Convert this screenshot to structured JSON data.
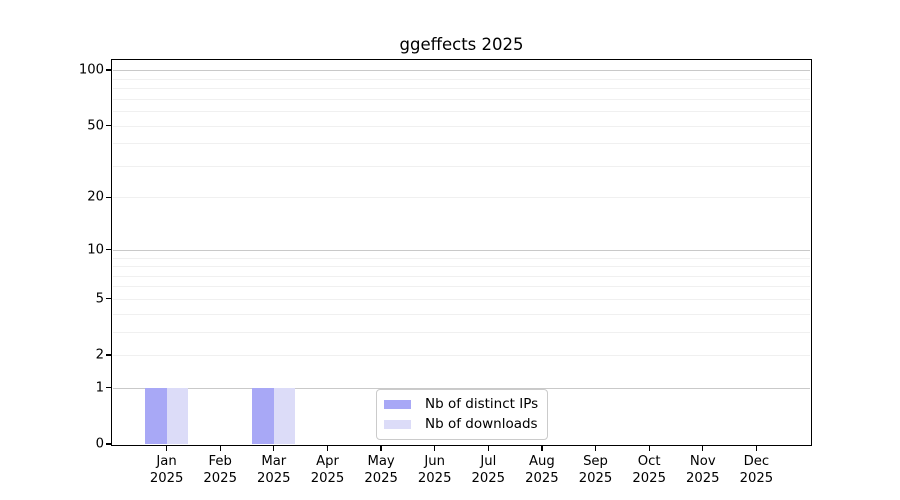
{
  "chart_data": {
    "type": "bar",
    "title": "ggeffects 2025",
    "categories": [
      "Jan",
      "Feb",
      "Mar",
      "Apr",
      "May",
      "Jun",
      "Jul",
      "Aug",
      "Sep",
      "Oct",
      "Nov",
      "Dec"
    ],
    "year_label": "2025",
    "series": [
      {
        "name": "Nb of distinct IPs",
        "color": "#a8a8f6",
        "values": [
          1,
          0,
          1,
          0,
          0,
          0,
          0,
          0,
          0,
          0,
          0,
          0
        ]
      },
      {
        "name": "Nb of downloads",
        "color": "#dcdcf8",
        "values": [
          1,
          0,
          1,
          0,
          0,
          0,
          0,
          0,
          0,
          0,
          0,
          0
        ]
      }
    ],
    "y_axis": {
      "scale": "log1p",
      "ticks": [
        0,
        1,
        2,
        5,
        10,
        20,
        50,
        100
      ],
      "limit_max": 112,
      "major_gridlines": [
        1,
        10,
        100
      ],
      "minor_gridlines": [
        2,
        3,
        4,
        5,
        6,
        7,
        8,
        9,
        20,
        30,
        40,
        50,
        60,
        70,
        80,
        90
      ]
    },
    "x_axis": {
      "tick_label_format": "month over year"
    },
    "legend": {
      "position": "inside-bottom-center"
    },
    "colors": {
      "major_grid": "#c9c9c9",
      "minor_grid": "#f0f0f0",
      "spine": "#000000",
      "text": "#000000",
      "background": "#ffffff"
    }
  }
}
